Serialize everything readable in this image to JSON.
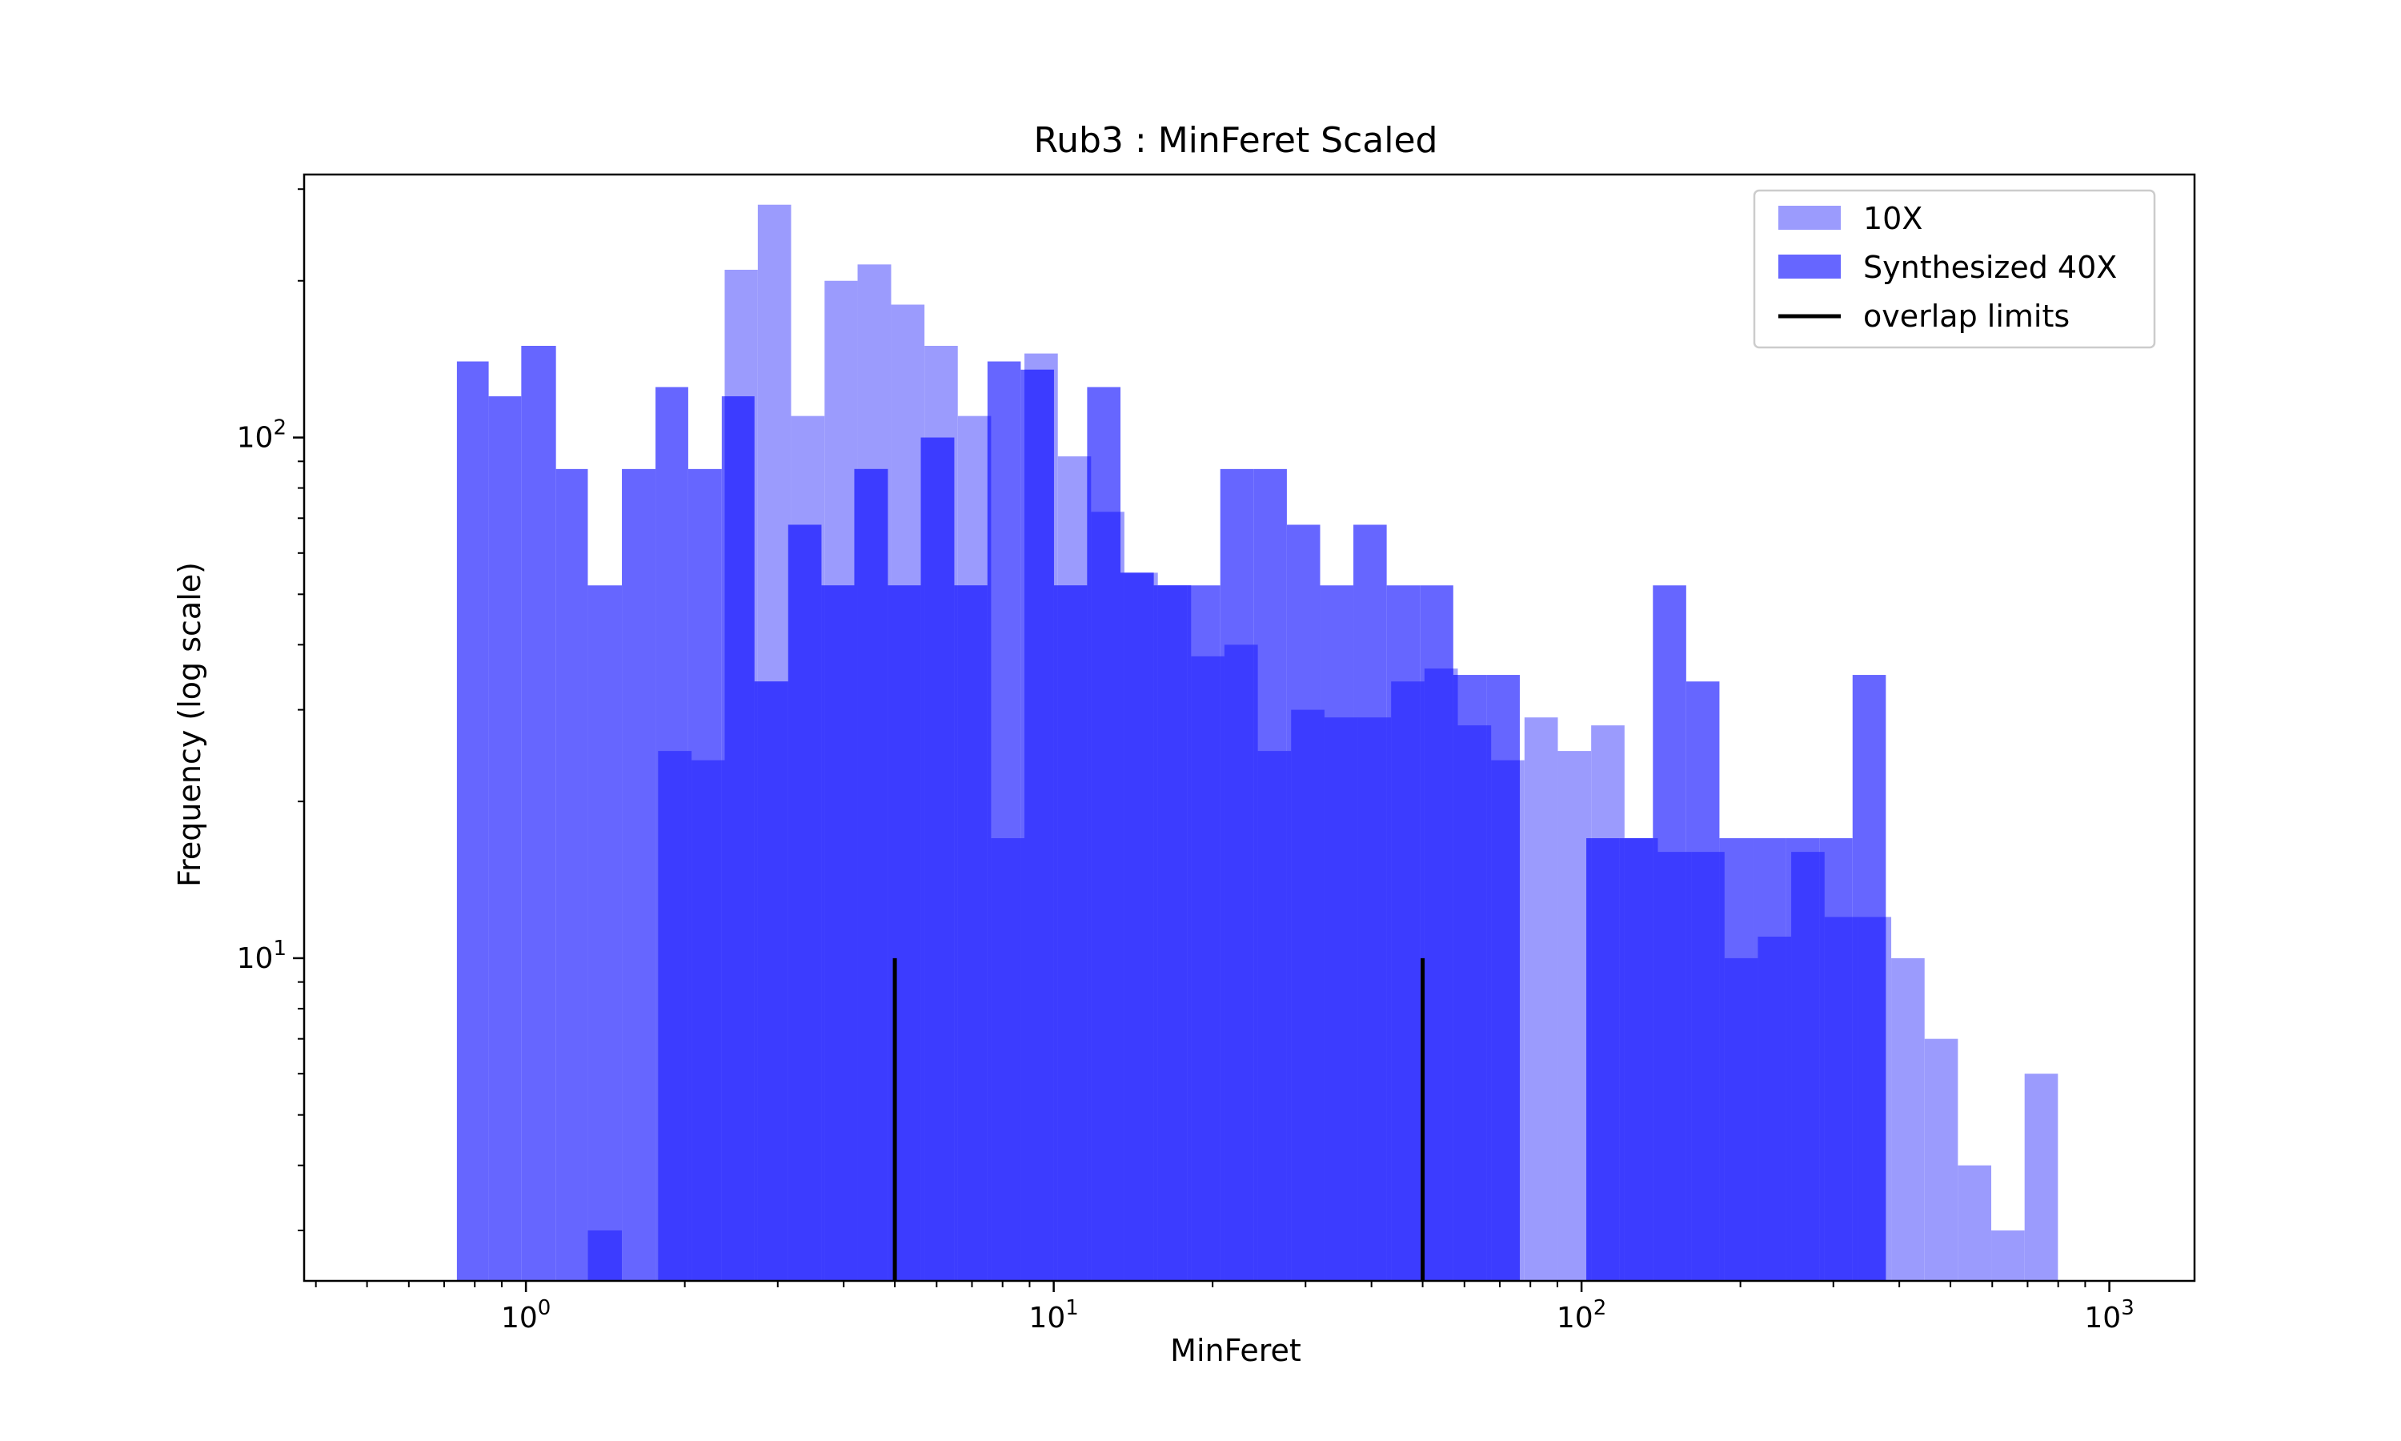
{
  "chart_data": {
    "type": "bar",
    "title": "Rub3 : MinFeret Scaled",
    "xlabel": "MinFeret",
    "ylabel": "Frequency (log scale)",
    "xscale": "log",
    "yscale": "log",
    "xlim": [
      0.38,
      1450
    ],
    "ylim": [
      2.4,
      320
    ],
    "grid": false,
    "legend_position": "upper-right",
    "x_ticks": [
      {
        "base": "10",
        "exp": "0",
        "value": 1
      },
      {
        "base": "10",
        "exp": "1",
        "value": 10
      },
      {
        "base": "10",
        "exp": "2",
        "value": 100
      },
      {
        "base": "10",
        "exp": "3",
        "value": 1000
      }
    ],
    "y_ticks": [
      {
        "base": "10",
        "exp": "1",
        "value": 10
      },
      {
        "base": "10",
        "exp": "2",
        "value": 100
      }
    ],
    "series": [
      {
        "name": "10X",
        "color": "#9b9bfd",
        "bin_edges": [
          1.78,
          2.06,
          2.38,
          2.75,
          3.18,
          3.68,
          4.25,
          4.92,
          5.69,
          6.58,
          7.61,
          8.8,
          10.18,
          11.77,
          13.61,
          15.75,
          18.21,
          21.06,
          24.36,
          28.17,
          32.58,
          37.68,
          43.58,
          50.4,
          58.29,
          67.42,
          77.97,
          90.18,
          104.3,
          120.63,
          139.51,
          161.35,
          186.61,
          215.83,
          249.62,
          288.69,
          333.89,
          386.16,
          446.62,
          516.53,
          597.4,
          690.92,
          799.1
        ],
        "values": [
          25,
          24,
          210,
          280,
          110,
          200,
          215,
          180,
          150,
          110,
          17,
          145,
          92,
          72,
          55,
          52,
          38,
          40,
          25,
          30,
          29,
          29,
          34,
          36,
          28,
          24,
          29,
          25,
          28,
          17,
          16,
          16,
          10,
          11,
          16,
          12,
          12,
          10,
          7,
          4,
          3,
          6
        ]
      },
      {
        "name": "Synthesized 40X",
        "color": "#6666ff",
        "bin_edges": [
          0.74,
          0.85,
          0.98,
          1.14,
          1.31,
          1.52,
          1.76,
          2.03,
          2.35,
          2.71,
          3.14,
          3.63,
          4.19,
          4.85,
          5.6,
          6.48,
          7.49,
          8.66,
          10.01,
          11.57,
          13.38,
          15.47,
          17.89,
          20.68,
          23.91,
          27.65,
          31.97,
          36.96,
          42.74,
          49.42,
          57.14,
          66.07,
          76.39,
          88.32,
          102.12,
          118.08,
          136.53,
          157.86,
          182.52,
          211.04,
          244.01,
          282.14,
          326.22,
          377.19,
          436.12
        ],
        "values": [
          140,
          120,
          150,
          87,
          52,
          87,
          125,
          87,
          120,
          34,
          68,
          52,
          87,
          52,
          100,
          52,
          140,
          135,
          52,
          125,
          55,
          52,
          52,
          87,
          87,
          68,
          52,
          68,
          52,
          52,
          35,
          35,
          0,
          0,
          17,
          17,
          52,
          34,
          17,
          17,
          17,
          17,
          35,
          0
        ]
      }
    ],
    "overlap": [
      {
        "name": "overlap limits",
        "color": "#000000",
        "x": 5.0,
        "y_top": 10
      },
      {
        "x": 50.0,
        "y_top": 10
      }
    ],
    "extra_bin": {
      "x0": 1.31,
      "x1": 1.52,
      "value": 3
    }
  }
}
